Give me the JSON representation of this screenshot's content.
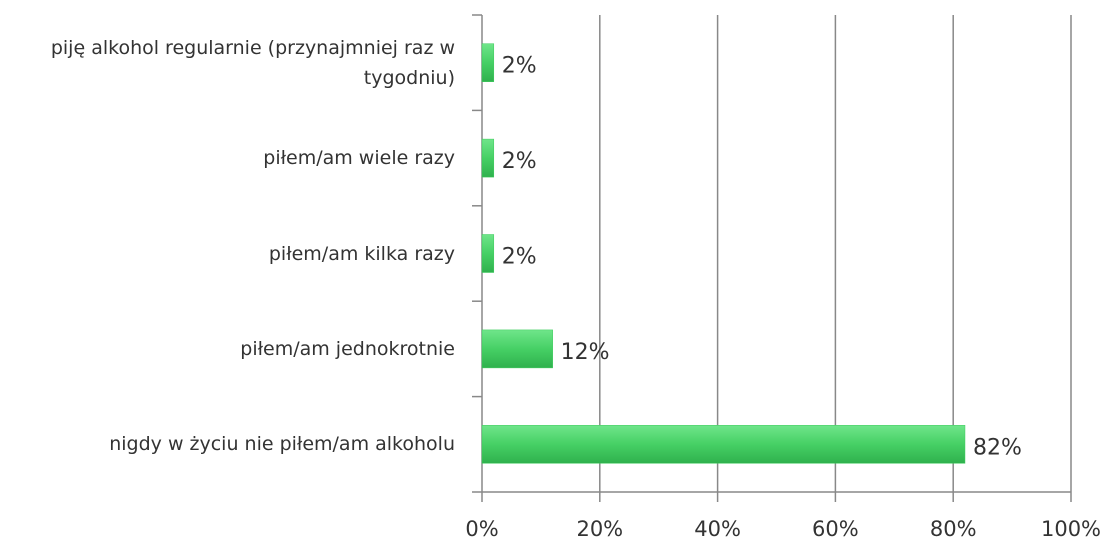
{
  "chart_data": {
    "type": "bar",
    "orientation": "horizontal",
    "categories": [
      "piję alkohol regularnie (przynajmniej raz w tygodniu)",
      "piłem/am wiele razy",
      "piłem/am kilka razy",
      "piłem/am jednokrotnie",
      "nigdy w życiu nie piłem/am alkoholu"
    ],
    "values": [
      2,
      2,
      2,
      12,
      82
    ],
    "value_labels": [
      "2%",
      "2%",
      "2%",
      "12%",
      "82%"
    ],
    "color": "#3ccb5c",
    "xlim": [
      0,
      100
    ],
    "xticks": [
      {
        "value": 0,
        "label": "0%"
      },
      {
        "value": 20,
        "label": "20%"
      },
      {
        "value": 40,
        "label": "40%"
      },
      {
        "value": 60,
        "label": "60%"
      },
      {
        "value": 80,
        "label": "80%"
      },
      {
        "value": 100,
        "label": "100%"
      }
    ],
    "grid": true
  }
}
